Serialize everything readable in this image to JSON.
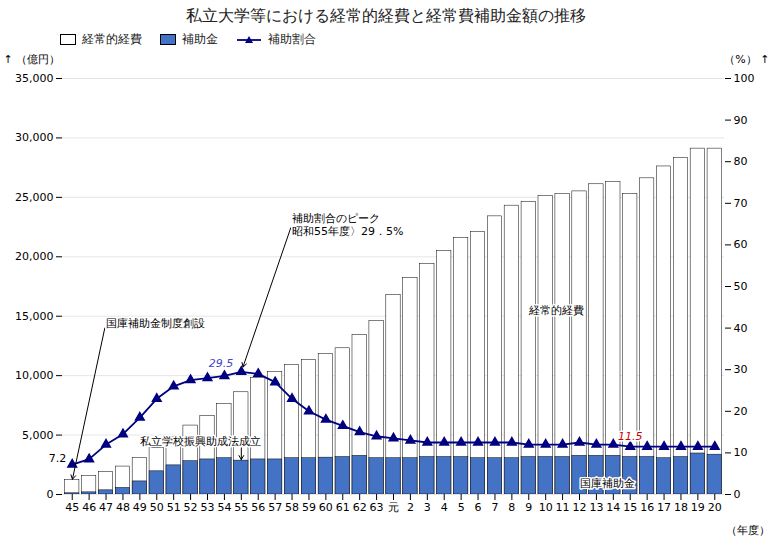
{
  "chart_data": {
    "type": "bar",
    "title": "私立大学等における経常的経費と経常費補助金額の推移",
    "x_label": "（年度）",
    "y_label": "（億円）",
    "y2_label": "（%）",
    "categories": [
      "45",
      "46",
      "47",
      "48",
      "49",
      "50",
      "51",
      "52",
      "53",
      "54",
      "55",
      "56",
      "57",
      "58",
      "59",
      "60",
      "61",
      "62",
      "63",
      "元",
      "2",
      "3",
      "4",
      "5",
      "6",
      "7",
      "8",
      "9",
      "10",
      "11",
      "12",
      "13",
      "14",
      "15",
      "16",
      "17",
      "18",
      "19",
      "20"
    ],
    "series": [
      {
        "name": "経常的経費",
        "type": "bar",
        "color": "#ffffff",
        "values": [
          1200,
          1550,
          1900,
          2350,
          3050,
          3900,
          4800,
          5800,
          6600,
          7600,
          8600,
          9800,
          10300,
          10900,
          11300,
          11800,
          12300,
          13400,
          14600,
          16800,
          18200,
          19400,
          20500,
          21600,
          22100,
          23400,
          24300,
          24600,
          25100,
          25300,
          25500,
          26100,
          26300,
          25300,
          26600,
          27600,
          28300,
          29100,
          29100
        ]
      },
      {
        "name": "補助金",
        "type": "bar",
        "color": "#4472c4",
        "values": [
          100,
          180,
          350,
          550,
          1100,
          1950,
          2450,
          2800,
          2950,
          3050,
          2850,
          2950,
          2950,
          3050,
          3050,
          3100,
          3150,
          3250,
          3050,
          3050,
          3050,
          3150,
          3150,
          3150,
          3050,
          3050,
          3050,
          3150,
          3150,
          3150,
          3250,
          3250,
          3250,
          3150,
          3150,
          3050,
          3150,
          3450,
          3350
        ]
      },
      {
        "name": "補助割合",
        "type": "line",
        "axis": "y2",
        "color": "#000080",
        "marker": "triangle",
        "values": [
          7.2,
          8.5,
          12.0,
          14.5,
          18.5,
          23.0,
          26.0,
          27.5,
          28.0,
          28.5,
          29.5,
          29.0,
          27.0,
          23.0,
          20.0,
          18.0,
          16.5,
          15.0,
          14.0,
          13.5,
          13.0,
          12.5,
          12.5,
          12.5,
          12.5,
          12.5,
          12.5,
          12.0,
          12.0,
          12.0,
          12.5,
          12.0,
          12.0,
          11.5,
          11.5,
          11.5,
          11.5,
          11.5,
          11.5
        ]
      }
    ],
    "stacked": false,
    "ylim": [
      0,
      35000
    ],
    "yticks": [
      0,
      {
        "value": 5000,
        "label": "5,000"
      },
      {
        "value": 10000,
        "label": "10,000"
      },
      {
        "value": 15000,
        "label": "15,000"
      },
      {
        "value": 20000,
        "label": "20,000"
      },
      {
        "value": 25000,
        "label": "25,000"
      },
      {
        "value": 30000,
        "label": "30,000"
      },
      {
        "value": 35000,
        "label": "35,000"
      }
    ],
    "y2lim": [
      0,
      100
    ],
    "y2ticks": [
      0,
      10,
      20,
      30,
      40,
      50,
      60,
      70,
      80,
      90,
      100
    ],
    "grid": true,
    "legend": "upper left",
    "annotations": [
      "補助割合のピーク\n昭和55年度〉29．5%",
      "国庫補助金制度創設",
      "私立学校振興助成法成立",
      "経常的経費",
      "国庫補助金",
      "29.5",
      "11.5",
      "7.2"
    ]
  }
}
